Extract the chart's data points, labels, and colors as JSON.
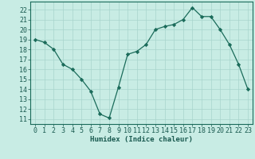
{
  "x": [
    0,
    1,
    2,
    3,
    4,
    5,
    6,
    7,
    8,
    9,
    10,
    11,
    12,
    13,
    14,
    15,
    16,
    17,
    18,
    19,
    20,
    21,
    22,
    23
  ],
  "y": [
    19,
    18.7,
    18.0,
    16.5,
    16.0,
    15.0,
    13.8,
    11.5,
    11.1,
    14.2,
    17.5,
    17.8,
    18.5,
    20.0,
    20.3,
    20.5,
    21.0,
    22.2,
    21.3,
    21.3,
    20.0,
    18.5,
    16.5,
    14.0
  ],
  "xlabel": "Humidex (Indice chaleur)",
  "ylim": [
    10.5,
    22.8
  ],
  "xlim": [
    -0.5,
    23.5
  ],
  "yticks": [
    11,
    12,
    13,
    14,
    15,
    16,
    17,
    18,
    19,
    20,
    21,
    22
  ],
  "xticks": [
    0,
    1,
    2,
    3,
    4,
    5,
    6,
    7,
    8,
    9,
    10,
    11,
    12,
    13,
    14,
    15,
    16,
    17,
    18,
    19,
    20,
    21,
    22,
    23
  ],
  "line_color": "#1a6b5a",
  "marker": "D",
  "marker_size": 2.2,
  "bg_color": "#c8ece4",
  "grid_color": "#a8d4cc",
  "font_color": "#1a5a50",
  "xlabel_fontsize": 6.5,
  "tick_fontsize": 6.0,
  "linewidth": 0.9
}
